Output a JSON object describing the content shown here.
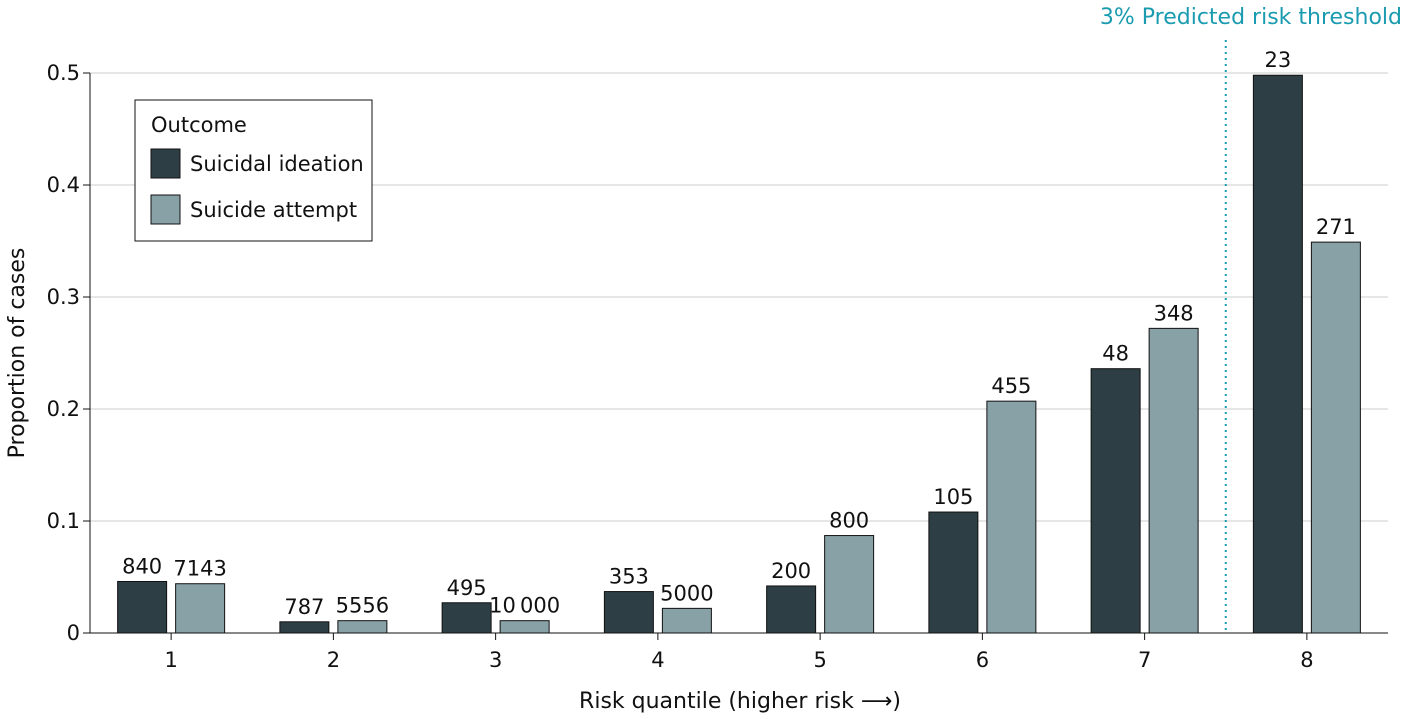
{
  "chart_data": {
    "type": "bar",
    "title": "",
    "xlabel": "Risk quantile (higher risk ⟶)",
    "ylabel": "Proportion of cases",
    "ylim": [
      0,
      0.5
    ],
    "yticks": [
      0,
      0.1,
      0.2,
      0.3,
      0.4,
      0.5
    ],
    "ytick_labels": [
      "0",
      "0.1",
      "0.2",
      "0.3",
      "0.4",
      "0.5"
    ],
    "grid": true,
    "categories": [
      "1",
      "2",
      "3",
      "4",
      "5",
      "6",
      "7",
      "8"
    ],
    "series": [
      {
        "name": "Suicidal ideation",
        "color": "#2d3e45",
        "values": [
          0.046,
          0.01,
          0.027,
          0.037,
          0.042,
          0.108,
          0.236,
          0.498
        ],
        "labels": [
          "840",
          "787",
          "495",
          "353",
          "200",
          "105",
          "48",
          "23"
        ]
      },
      {
        "name": "Suicide attempt",
        "color": "#88a1a6",
        "values": [
          0.044,
          0.011,
          0.011,
          0.022,
          0.087,
          0.207,
          0.272,
          0.349
        ],
        "labels": [
          "7143",
          "5556",
          "10 000",
          "5000",
          "800",
          "455",
          "348",
          "271"
        ]
      }
    ],
    "legend": {
      "title": "Outcome",
      "position": "top-left"
    },
    "threshold": {
      "label": "3% Predicted risk threshold",
      "between_categories": [
        "7",
        "8"
      ],
      "color": "#1a9bb0",
      "style": "dotted"
    }
  }
}
